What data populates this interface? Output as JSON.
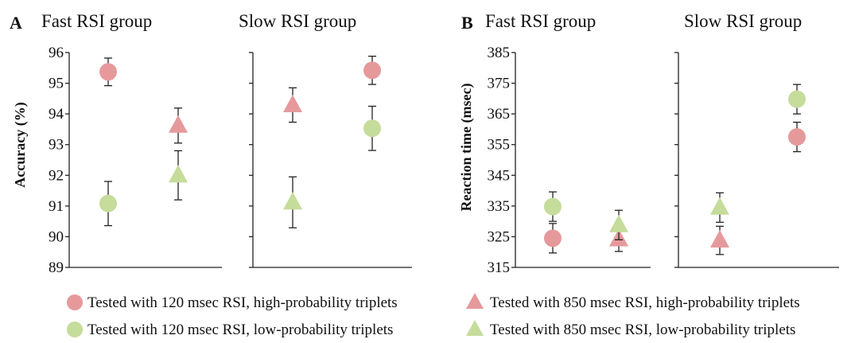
{
  "panels": [
    {
      "letter": "A",
      "title": "Fast RSI group"
    },
    {
      "letter": "",
      "title": "Slow RSI group"
    },
    {
      "letter": "B",
      "title": "Fast RSI group"
    },
    {
      "letter": "",
      "title": "Slow RSI group"
    }
  ],
  "legend": [
    {
      "label": "Tested with 120 msec RSI, high-probability triplets",
      "shape": "circle",
      "color": "#e6999b"
    },
    {
      "label": "Tested with 850 msec RSI, high-probability triplets",
      "shape": "triangle",
      "color": "#e6999b"
    },
    {
      "label": "Tested with 120 msec RSI, low-probability triplets",
      "shape": "circle",
      "color": "#c5dc9b"
    },
    {
      "label": "Tested with 850 msec RSI, low-probability triplets",
      "shape": "triangle",
      "color": "#c5dc9b"
    }
  ],
  "chart_data": [
    {
      "type": "scatter",
      "title": "Fast RSI group",
      "ylabel": "Accuracy (%)",
      "ylim": [
        89,
        96
      ],
      "yticks": [
        89,
        90,
        91,
        92,
        93,
        94,
        95,
        96
      ],
      "x": [
        "120 msec RSI",
        "850 msec RSI"
      ],
      "series": [
        {
          "name": "Tested with 120 msec RSI, high-probability triplets",
          "x": "120 msec RSI",
          "y": 95.37,
          "err": 0.45,
          "shape": "circle",
          "color": "#e6999b"
        },
        {
          "name": "Tested with 120 msec RSI, low-probability triplets",
          "x": "120 msec RSI",
          "y": 91.08,
          "err": 0.72,
          "shape": "circle",
          "color": "#c5dc9b"
        },
        {
          "name": "Tested with 850 msec RSI, high-probability triplets",
          "x": "850 msec RSI",
          "y": 93.62,
          "err": 0.57,
          "shape": "triangle",
          "color": "#e6999b"
        },
        {
          "name": "Tested with 850 msec RSI, low-probability triplets",
          "x": "850 msec RSI",
          "y": 92.0,
          "err": 0.8,
          "shape": "triangle",
          "color": "#c5dc9b"
        }
      ]
    },
    {
      "type": "scatter",
      "title": "Slow RSI group",
      "ylabel": "",
      "ylim": [
        89,
        96
      ],
      "yticks": [],
      "x": [
        "850 msec RSI",
        "120 msec RSI"
      ],
      "series": [
        {
          "name": "Tested with 850 msec RSI, high-probability triplets",
          "x": "850 msec RSI",
          "y": 94.29,
          "err": 0.56,
          "shape": "triangle",
          "color": "#e6999b"
        },
        {
          "name": "Tested with 850 msec RSI, low-probability triplets",
          "x": "850 msec RSI",
          "y": 91.12,
          "err": 0.83,
          "shape": "triangle",
          "color": "#c5dc9b"
        },
        {
          "name": "Tested with 120 msec RSI, high-probability triplets",
          "x": "120 msec RSI",
          "y": 95.42,
          "err": 0.46,
          "shape": "circle",
          "color": "#e6999b"
        },
        {
          "name": "Tested with 120 msec RSI, low-probability triplets",
          "x": "120 msec RSI",
          "y": 93.53,
          "err": 0.72,
          "shape": "circle",
          "color": "#c5dc9b"
        }
      ]
    },
    {
      "type": "scatter",
      "title": "Fast RSI group",
      "ylabel": "Reaction time (msec)",
      "ylim": [
        315,
        385
      ],
      "yticks": [
        315,
        325,
        335,
        345,
        355,
        365,
        375,
        385
      ],
      "x": [
        "120 msec RSI",
        "850 msec RSI"
      ],
      "series": [
        {
          "name": "Tested with 120 msec RSI, high-probability triplets",
          "x": "120 msec RSI",
          "y": 324.5,
          "err": 4.8,
          "shape": "circle",
          "color": "#e6999b"
        },
        {
          "name": "Tested with 120 msec RSI, low-probability triplets",
          "x": "120 msec RSI",
          "y": 334.8,
          "err": 4.8,
          "shape": "circle",
          "color": "#c5dc9b"
        },
        {
          "name": "Tested with 850 msec RSI, high-probability triplets",
          "x": "850 msec RSI",
          "y": 324.2,
          "err": 4.0,
          "shape": "triangle",
          "color": "#e6999b"
        },
        {
          "name": "Tested with 850 msec RSI, low-probability triplets",
          "x": "850 msec RSI",
          "y": 328.8,
          "err": 4.8,
          "shape": "triangle",
          "color": "#c5dc9b"
        }
      ]
    },
    {
      "type": "scatter",
      "title": "Slow RSI group",
      "ylabel": "",
      "ylim": [
        315,
        385
      ],
      "yticks": [],
      "x": [
        "850 msec RSI",
        "120 msec RSI"
      ],
      "series": [
        {
          "name": "Tested with 850 msec RSI, high-probability triplets",
          "x": "850 msec RSI",
          "y": 323.8,
          "err": 4.6,
          "shape": "triangle",
          "color": "#e6999b"
        },
        {
          "name": "Tested with 850 msec RSI, low-probability triplets",
          "x": "850 msec RSI",
          "y": 334.5,
          "err": 4.8,
          "shape": "triangle",
          "color": "#c5dc9b"
        },
        {
          "name": "Tested with 120 msec RSI, high-probability triplets",
          "x": "120 msec RSI",
          "y": 357.5,
          "err": 4.8,
          "shape": "circle",
          "color": "#e6999b"
        },
        {
          "name": "Tested with 120 msec RSI, low-probability triplets",
          "x": "120 msec RSI",
          "y": 369.8,
          "err": 4.8,
          "shape": "circle",
          "color": "#c5dc9b"
        }
      ]
    }
  ]
}
